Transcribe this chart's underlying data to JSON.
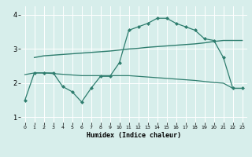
{
  "xlabel": "Humidex (Indice chaleur)",
  "background_color": "#d7eeeb",
  "grid_color": "#ffffff",
  "line_color": "#2e7d6e",
  "xlim": [
    -0.5,
    23.5
  ],
  "ylim": [
    0.85,
    4.25
  ],
  "yticks": [
    1,
    2,
    3,
    4
  ],
  "xticks": [
    0,
    1,
    2,
    3,
    4,
    5,
    6,
    7,
    8,
    9,
    10,
    11,
    12,
    13,
    14,
    15,
    16,
    17,
    18,
    19,
    20,
    21,
    22,
    23
  ],
  "line_jagged_x": [
    0,
    1,
    2,
    3,
    4,
    5,
    6,
    7,
    8,
    9,
    10,
    11,
    12,
    13,
    14,
    15,
    16,
    17,
    18,
    19,
    20,
    21,
    22,
    23
  ],
  "line_jagged_y": [
    1.5,
    2.3,
    2.3,
    2.3,
    1.9,
    1.75,
    1.45,
    1.85,
    2.2,
    2.2,
    2.6,
    3.55,
    3.65,
    3.75,
    3.9,
    3.9,
    3.75,
    3.65,
    3.55,
    3.3,
    3.25,
    2.75,
    1.85,
    1.85
  ],
  "line_upper_x": [
    1,
    2,
    3,
    4,
    5,
    6,
    7,
    8,
    9,
    10,
    11,
    12,
    13,
    14,
    15,
    16,
    17,
    18,
    19,
    20,
    21,
    22,
    23
  ],
  "line_upper_y": [
    2.75,
    2.8,
    2.82,
    2.84,
    2.86,
    2.88,
    2.9,
    2.92,
    2.94,
    2.97,
    3.0,
    3.02,
    3.05,
    3.07,
    3.09,
    3.11,
    3.13,
    3.15,
    3.18,
    3.22,
    3.25,
    3.25,
    3.25
  ],
  "line_lower_x": [
    0,
    1,
    2,
    3,
    4,
    5,
    6,
    7,
    8,
    9,
    10,
    11,
    12,
    13,
    14,
    15,
    16,
    17,
    18,
    19,
    20,
    21,
    22,
    23
  ],
  "line_lower_y": [
    2.25,
    2.3,
    2.3,
    2.28,
    2.26,
    2.24,
    2.22,
    2.22,
    2.22,
    2.22,
    2.22,
    2.22,
    2.2,
    2.18,
    2.16,
    2.14,
    2.12,
    2.1,
    2.08,
    2.05,
    2.02,
    2.0,
    1.85,
    1.85
  ]
}
